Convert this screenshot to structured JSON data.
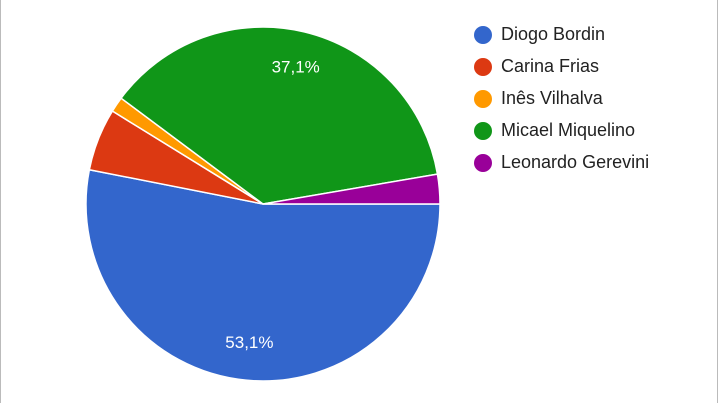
{
  "chart_data": {
    "type": "pie",
    "categories": [
      "Diogo Bordin",
      "Carina Frias",
      "Inês Vilhalva",
      "Micael Miquelino",
      "Leonardo Gerevini"
    ],
    "values": [
      53.1,
      5.7,
      1.4,
      37.1,
      2.7
    ],
    "value_labels": [
      "53,1%",
      null,
      null,
      "37,1%",
      null
    ],
    "colors": [
      "#3366cc",
      "#dc3912",
      "#ff9900",
      "#109618",
      "#990099"
    ],
    "legend": "right"
  }
}
